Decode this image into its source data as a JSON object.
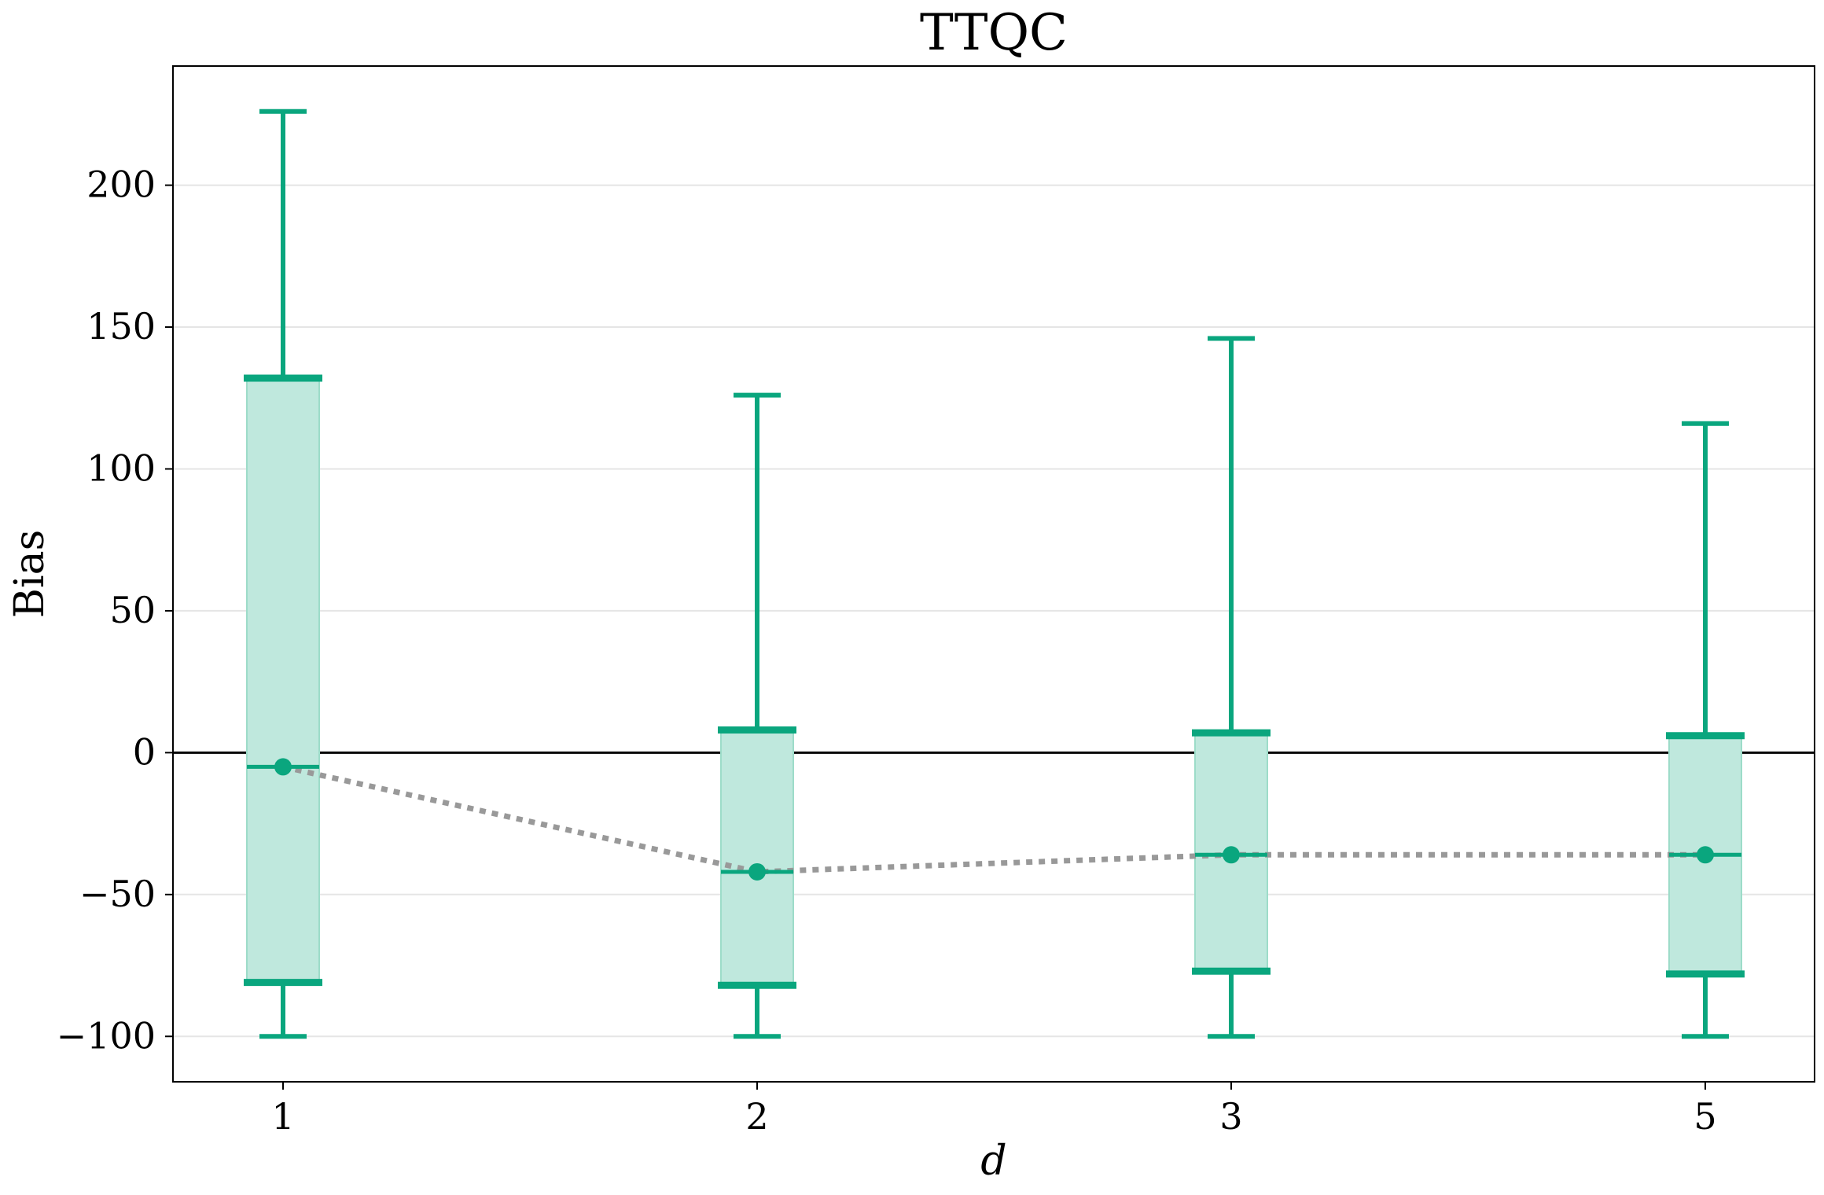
{
  "chart_data": {
    "type": "box",
    "title": "TTQC",
    "xlabel": "d",
    "ylabel": "Bias",
    "categories": [
      "1",
      "2",
      "3",
      "5"
    ],
    "ylim": [
      -116,
      242
    ],
    "yticks": [
      -100,
      -50,
      0,
      50,
      100,
      150,
      200
    ],
    "ytick_labels": [
      "−100",
      "−50",
      "0",
      "50",
      "100",
      "150",
      "200"
    ],
    "grid": "horizontal",
    "reference_line": 0,
    "series": [
      {
        "whisker_low": [
          -100,
          -100,
          -100,
          -100
        ],
        "q1": [
          -81,
          -82,
          -77,
          -78
        ],
        "median": [
          -5,
          -42,
          -36,
          -36
        ],
        "mean": [
          -5,
          -42,
          -36,
          -36
        ],
        "q3": [
          132,
          8,
          7,
          6
        ],
        "whisker_high": [
          226,
          126,
          146,
          116
        ]
      }
    ],
    "colors": {
      "accent": "#0aa67e",
      "box_fill": "#bfe8dd",
      "mean_line": "#999999",
      "grid": "#e5e5e5",
      "axis": "#000000"
    }
  }
}
